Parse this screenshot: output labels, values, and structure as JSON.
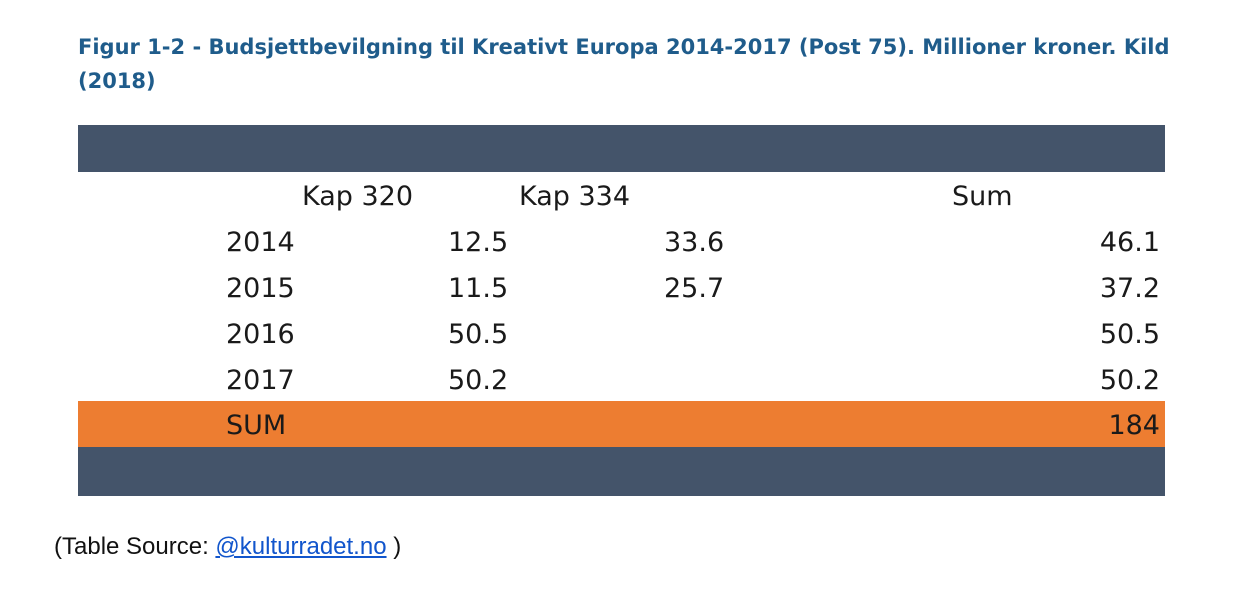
{
  "caption": {
    "line1": "Figur 1-2 - Budsjettbevilgning til Kreativt Europa 2014-2017 (Post 75). Millioner kroner. Kild",
    "line2": "(2018)"
  },
  "table": {
    "headers": [
      "Kap 320",
      "Kap 334",
      "Sum"
    ],
    "rows": [
      {
        "year": "2014",
        "kap320": "12.5",
        "kap334": "33.6",
        "sum": "46.1"
      },
      {
        "year": "2015",
        "kap320": "11.5",
        "kap334": "25.7",
        "sum": "37.2"
      },
      {
        "year": "2016",
        "kap320": "50.5",
        "kap334": "",
        "sum": "50.5"
      },
      {
        "year": "2017",
        "kap320": "50.2",
        "kap334": "",
        "sum": "50.2"
      }
    ],
    "total": {
      "label": "SUM",
      "sum": "184"
    }
  },
  "source": {
    "prefix": "(Table Source: ",
    "link_text": "@kulturradet.no",
    "suffix": " )"
  },
  "colors": {
    "caption": "#1f5c8b",
    "band": "#44546a",
    "sum_row": "#ed7d31",
    "link": "#1155cc"
  }
}
